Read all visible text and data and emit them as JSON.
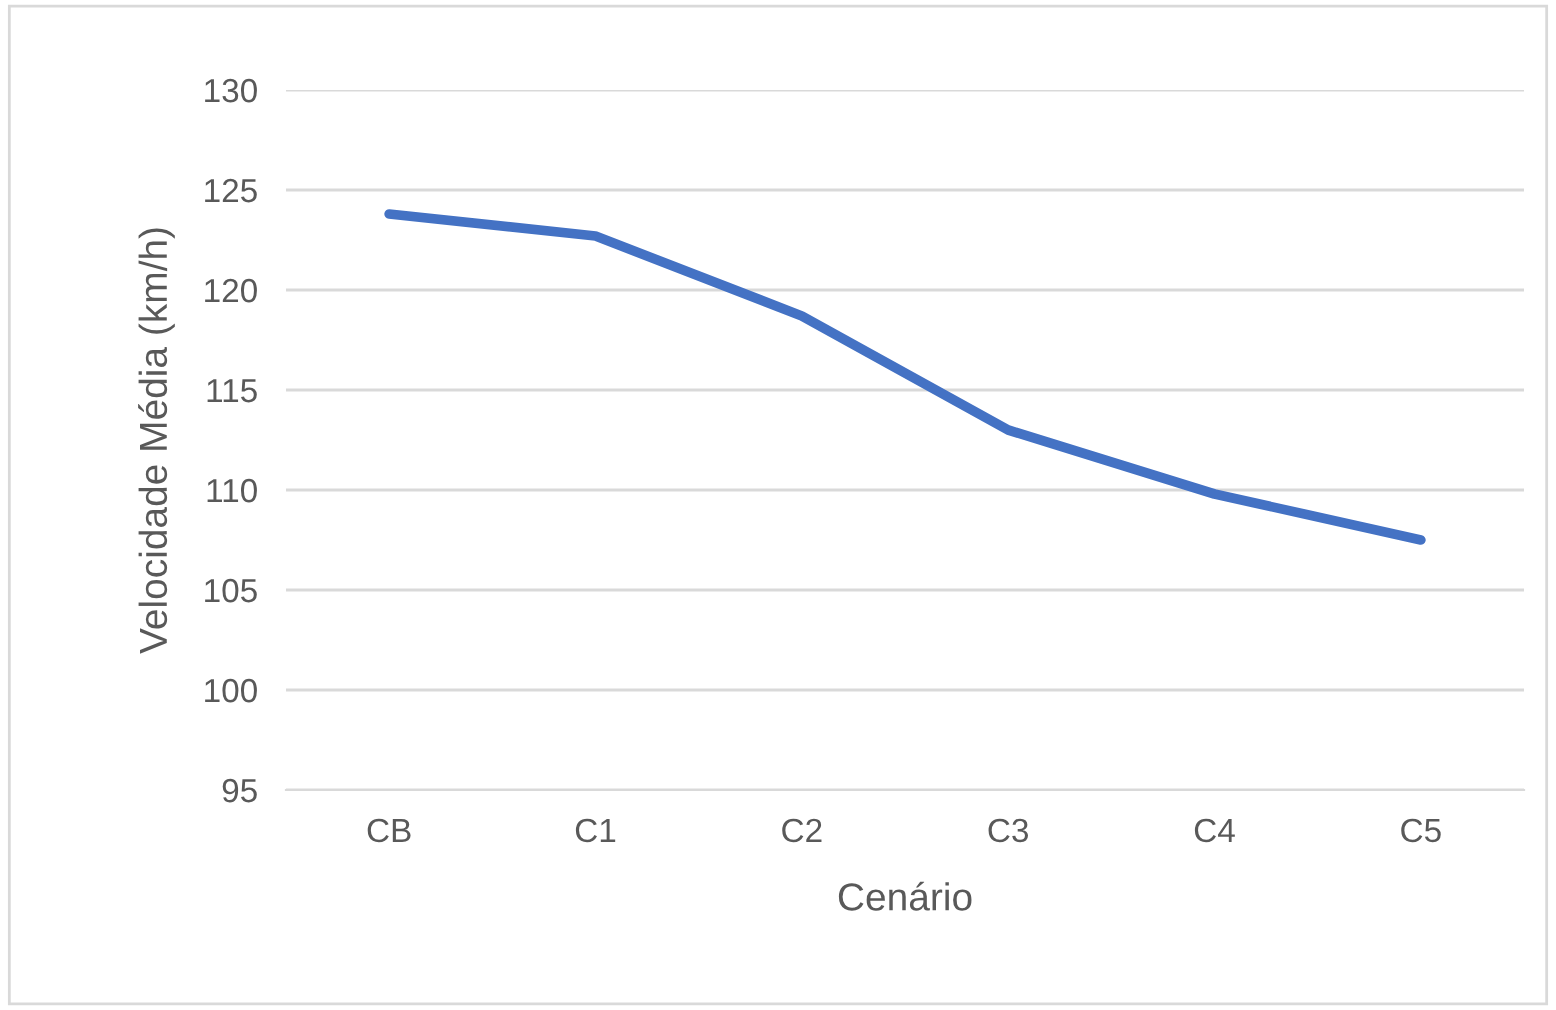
{
  "chart_data": {
    "type": "line",
    "xlabel": "Cenário",
    "ylabel": "Velocidade Média (km/h)",
    "categories": [
      "CB",
      "C1",
      "C2",
      "C3",
      "C4",
      "C5"
    ],
    "series": [
      {
        "color": "#4472c4",
        "values": [
          123.8,
          122.7,
          118.7,
          113.0,
          109.8,
          107.5
        ]
      }
    ],
    "ylim": [
      95,
      130
    ],
    "yticks": [
      95,
      100,
      105,
      110,
      115,
      120,
      125,
      130
    ],
    "grid": "y",
    "marker": "none",
    "line_style": "solid"
  }
}
